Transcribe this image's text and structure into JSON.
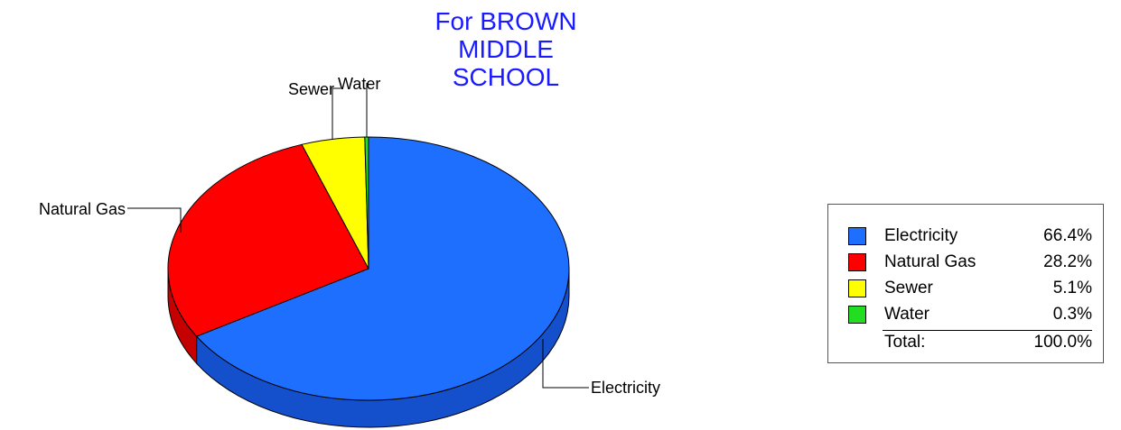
{
  "chart_data": {
    "type": "pie",
    "title_lines": [
      "For BROWN",
      "MIDDLE",
      "SCHOOL"
    ],
    "slices": [
      {
        "label": "Electricity",
        "value": 66.4,
        "display": "66.4%",
        "color": "#1f6fff",
        "side": "#1550cc"
      },
      {
        "label": "Natural Gas",
        "value": 28.2,
        "display": "28.2%",
        "color": "#ff0000",
        "side": "#c40000"
      },
      {
        "label": "Sewer",
        "value": 5.1,
        "display": "5.1%",
        "color": "#ffff00",
        "side": "#c8c800"
      },
      {
        "label": "Water",
        "value": 0.3,
        "display": "0.3%",
        "color": "#22dd22",
        "side": "#119911"
      }
    ],
    "total_label": "Total:",
    "total_display": "100.0%",
    "legend_position": "right"
  }
}
